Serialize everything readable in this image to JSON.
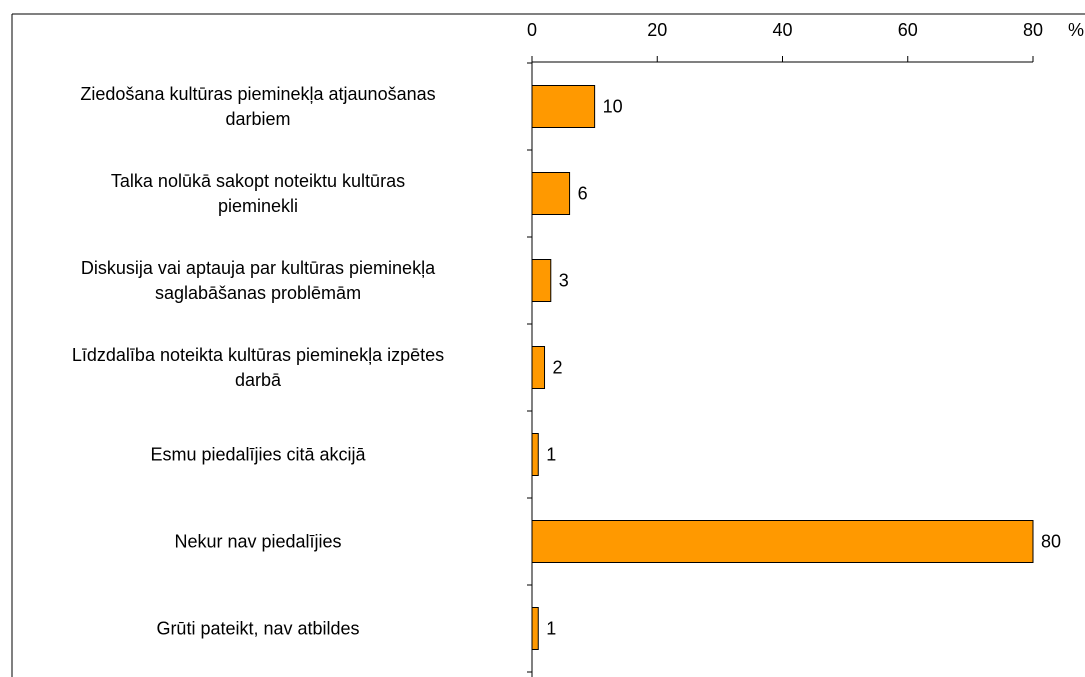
{
  "chart_data": {
    "type": "bar",
    "orientation": "horizontal",
    "xlabel": "%",
    "categories": [
      "Ziedošana kultūras pieminekļa atjaunošanas\ndarbiem",
      "Talka nolūkā sakopt noteiktu kultūras\npieminekli",
      "Diskusija vai aptauja par kultūras pieminekļa\nsaglabāšanas problēmām",
      "Līdzdalība noteikta kultūras pieminekļa izpētes\ndarbā",
      "Esmu piedalījies citā akcijā",
      "Nekur nav piedalījies",
      "Grūti pateikt, nav atbildes"
    ],
    "values": [
      10,
      6,
      3,
      2,
      1,
      80,
      1
    ],
    "color": "#ff9900",
    "xlim": [
      0,
      80
    ],
    "xticks": [
      0,
      20,
      40,
      60,
      80
    ],
    "grid": false
  }
}
